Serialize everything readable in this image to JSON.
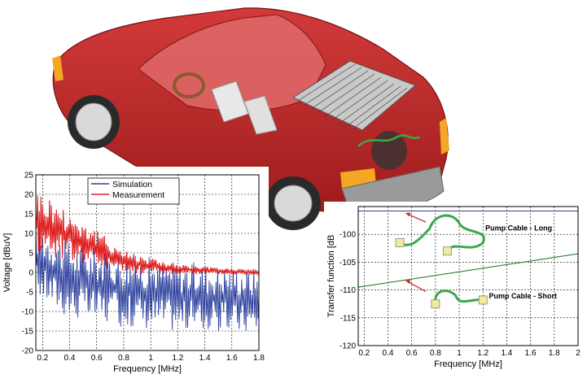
{
  "chart_data": [
    {
      "type": "line",
      "xlabel": "Frequency [MHz]",
      "ylabel": "Voltage [dBuV]",
      "xlim": [
        0.15,
        1.8
      ],
      "ylim": [
        -20,
        25
      ],
      "x_ticks": [
        "0.2",
        "0.4",
        "0.6",
        "0.8",
        "1",
        "1.2",
        "1.4",
        "1.6",
        "1.8"
      ],
      "y_ticks": [
        "25",
        "20",
        "15",
        "10",
        "5",
        "0",
        "-5",
        "-10",
        "-15",
        "-20"
      ],
      "grid": true,
      "legend_position": "top-right",
      "series": [
        {
          "name": "Simulation",
          "color": "#2b3f9e",
          "upper_envelope": [
            [
              0.15,
              13
            ],
            [
              0.4,
              8
            ],
            [
              0.8,
              5
            ],
            [
              1.2,
              3
            ],
            [
              1.8,
              1.5
            ]
          ],
          "lower_envelope": [
            [
              0.15,
              -6
            ],
            [
              0.4,
              -12
            ],
            [
              0.8,
              -14
            ],
            [
              1.2,
              -15
            ],
            [
              1.8,
              -16
            ]
          ]
        },
        {
          "name": "Measurement",
          "color": "#e02020",
          "upper_envelope": [
            [
              0.15,
              22
            ],
            [
              0.4,
              16
            ],
            [
              0.8,
              6
            ],
            [
              1.2,
              2
            ],
            [
              1.8,
              0.5
            ]
          ],
          "lower_envelope": [
            [
              0.15,
              5
            ],
            [
              0.4,
              3
            ],
            [
              0.8,
              -0.5
            ],
            [
              1.2,
              -0.5
            ],
            [
              1.8,
              -0.5
            ]
          ]
        }
      ]
    },
    {
      "type": "line",
      "xlabel": "Frequency [MHz]",
      "ylabel": "Transfer function [dB",
      "xlim": [
        0.15,
        2.0
      ],
      "ylim": [
        -120,
        -95
      ],
      "x_ticks": [
        "0.2",
        "0.4",
        "0.6",
        "0.8",
        "1",
        "1.2",
        "1.4",
        "1.6",
        "1.8",
        "2"
      ],
      "y_ticks": [
        "-100",
        "-105",
        "-110",
        "-115",
        "-120"
      ],
      "grid": true,
      "series": [
        {
          "name": "Pump Cable - Long",
          "color": "#2b3f9e",
          "points": [
            [
              0.15,
              -95.8
            ],
            [
              2.0,
              -95.8
            ]
          ]
        },
        {
          "name": "Pump Cable - Short",
          "color": "#2e7d32",
          "points": [
            [
              0.15,
              -109.5
            ],
            [
              2.0,
              -103.5
            ]
          ]
        }
      ],
      "annotations": [
        "Pump Cable - Long",
        "Pump Cable - Short"
      ]
    }
  ]
}
